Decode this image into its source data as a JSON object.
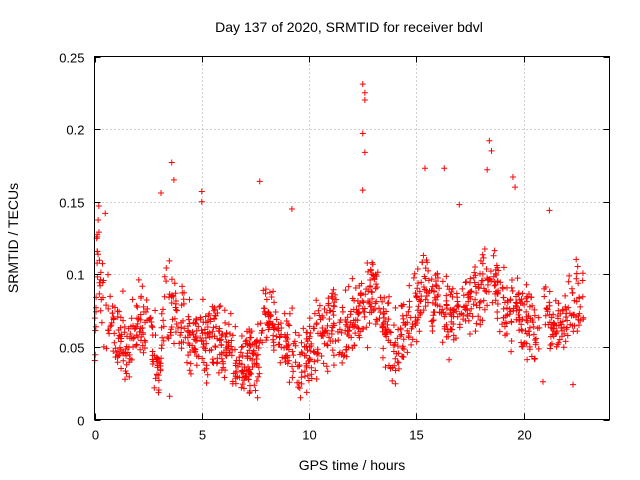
{
  "chart_data": {
    "type": "scatter",
    "title": "Day 137 of 2020, SRMTID for receiver bdvl",
    "xlabel": "GPS time / hours",
    "ylabel": "SRMTID / TECUs",
    "xlim": [
      0,
      24
    ],
    "ylim": [
      0,
      0.25
    ],
    "xticks": [
      "0",
      "5",
      "10",
      "15",
      "20"
    ],
    "xtick_values": [
      0,
      5,
      10,
      15,
      20
    ],
    "yticks": [
      "0",
      "0.05",
      "0.1",
      "0.15",
      "0.2",
      "0.25"
    ],
    "ytick_values": [
      0,
      0.05,
      0.1,
      0.15,
      0.2,
      0.25
    ],
    "grid": true,
    "marker": "+",
    "color": "#ff0000",
    "series": [
      {
        "name": "SRMTID",
        "x_range": [
          0,
          22.8
        ],
        "n_points": 1400,
        "typical_range": [
          0.03,
          0.12
        ],
        "spikes": [
          {
            "x": 0.2,
            "y": 0.147
          },
          {
            "x": 0.5,
            "y": 0.142
          },
          {
            "x": 3.1,
            "y": 0.156
          },
          {
            "x": 3.6,
            "y": 0.177
          },
          {
            "x": 3.7,
            "y": 0.165
          },
          {
            "x": 5.0,
            "y": 0.157
          },
          {
            "x": 5.0,
            "y": 0.15
          },
          {
            "x": 7.7,
            "y": 0.164
          },
          {
            "x": 9.2,
            "y": 0.145
          },
          {
            "x": 12.5,
            "y": 0.231
          },
          {
            "x": 12.6,
            "y": 0.225
          },
          {
            "x": 12.6,
            "y": 0.22
          },
          {
            "x": 12.5,
            "y": 0.197
          },
          {
            "x": 12.6,
            "y": 0.184
          },
          {
            "x": 12.5,
            "y": 0.158
          },
          {
            "x": 15.4,
            "y": 0.173
          },
          {
            "x": 16.3,
            "y": 0.173
          },
          {
            "x": 18.4,
            "y": 0.192
          },
          {
            "x": 18.5,
            "y": 0.185
          },
          {
            "x": 18.3,
            "y": 0.172
          },
          {
            "x": 19.5,
            "y": 0.167
          },
          {
            "x": 19.6,
            "y": 0.16
          },
          {
            "x": 17.0,
            "y": 0.148
          },
          {
            "x": 21.2,
            "y": 0.144
          },
          {
            "x": 3.5,
            "y": 0.016
          },
          {
            "x": 7.6,
            "y": 0.015
          },
          {
            "x": 9.6,
            "y": 0.015
          },
          {
            "x": 20.9,
            "y": 0.026
          },
          {
            "x": 22.3,
            "y": 0.024
          }
        ],
        "points": [
          [
            0.05,
            0.05
          ],
          [
            0.1,
            0.125
          ],
          [
            0.3,
            0.09
          ],
          [
            0.6,
            0.07
          ],
          [
            1.0,
            0.06
          ],
          [
            1.5,
            0.05
          ],
          [
            2.0,
            0.07
          ],
          [
            2.5,
            0.065
          ],
          [
            3.0,
            0.03
          ],
          [
            3.3,
            0.08
          ],
          [
            4.0,
            0.07
          ],
          [
            4.5,
            0.055
          ],
          [
            5.5,
            0.06
          ],
          [
            6.0,
            0.05
          ],
          [
            6.5,
            0.04
          ],
          [
            7.0,
            0.035
          ],
          [
            7.5,
            0.045
          ],
          [
            8.0,
            0.07
          ],
          [
            8.5,
            0.06
          ],
          [
            9.0,
            0.05
          ],
          [
            9.5,
            0.04
          ],
          [
            10.0,
            0.045
          ],
          [
            10.5,
            0.06
          ],
          [
            11.0,
            0.07
          ],
          [
            11.5,
            0.055
          ],
          [
            12.0,
            0.065
          ],
          [
            13.0,
            0.09
          ],
          [
            13.5,
            0.07
          ],
          [
            14.0,
            0.05
          ],
          [
            14.5,
            0.06
          ],
          [
            15.0,
            0.08
          ],
          [
            15.5,
            0.09
          ],
          [
            16.0,
            0.085
          ],
          [
            16.5,
            0.07
          ],
          [
            17.0,
            0.075
          ],
          [
            17.5,
            0.08
          ],
          [
            18.0,
            0.09
          ],
          [
            18.5,
            0.1
          ],
          [
            19.0,
            0.08
          ],
          [
            19.5,
            0.075
          ],
          [
            20.0,
            0.07
          ],
          [
            20.5,
            0.06
          ],
          [
            21.0,
            0.075
          ],
          [
            21.5,
            0.065
          ],
          [
            22.0,
            0.07
          ],
          [
            22.5,
            0.08
          ]
        ]
      }
    ]
  }
}
